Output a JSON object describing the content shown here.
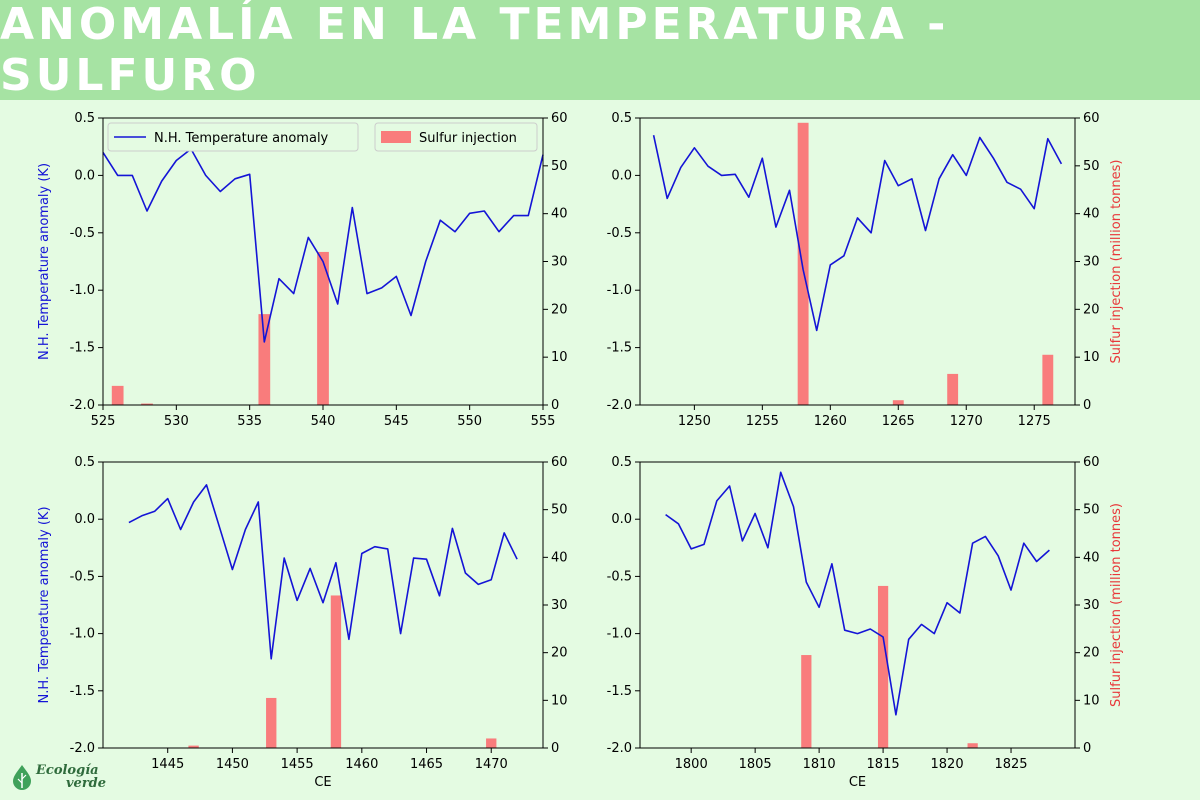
{
  "header": {
    "title": "ANOMALÍA EN LA TEMPERATURA - SULFURO"
  },
  "colors": {
    "line": "#1414d6",
    "bar": "#f97c7c",
    "header_bg": "#a6e3a3",
    "page_bg": "#e4fbe2"
  },
  "legend": {
    "line_label": "N.H. Temperature anomaly",
    "bar_label": "Sulfur injection"
  },
  "logo": {
    "line1": "Ecología",
    "line2": "verde",
    "icon": "leaf-drop-icon"
  },
  "chart_data": [
    {
      "type": "line+bar",
      "xlim": [
        525,
        555
      ],
      "xticks": [
        525,
        530,
        535,
        540,
        545,
        550,
        555
      ],
      "ylim": [
        -2.0,
        0.5
      ],
      "yticks": [
        "-2.0",
        "-1.5",
        "-1.0",
        "-0.5",
        "0.0",
        "0.5"
      ],
      "y2lim": [
        0,
        60
      ],
      "y2ticks": [
        "0",
        "10",
        "20",
        "30",
        "40",
        "50",
        "60"
      ],
      "ylabel": "N.H. Temperature anomaly (K)",
      "y2label": "",
      "xlabel": "",
      "show_legend": true,
      "series": [
        {
          "name": "N.H. Temperature anomaly",
          "x": [
            525,
            526,
            527,
            528,
            529,
            530,
            531,
            532,
            533,
            534,
            535,
            536,
            537,
            538,
            539,
            540,
            541,
            542,
            543,
            544,
            545,
            546,
            547,
            548,
            549,
            550,
            551,
            552,
            553,
            554,
            555
          ],
          "y": [
            0.2,
            0.0,
            0.0,
            -0.31,
            -0.05,
            0.13,
            0.23,
            0.0,
            -0.14,
            -0.03,
            0.01,
            -1.45,
            -0.9,
            -1.03,
            -0.54,
            -0.75,
            -1.12,
            -0.28,
            -1.03,
            -0.98,
            -0.88,
            -1.22,
            -0.75,
            -0.39,
            -0.49,
            -0.33,
            -0.31,
            -0.49,
            -0.35,
            -0.35,
            0.18
          ]
        },
        {
          "name": "Sulfur injection",
          "x": [
            526,
            528,
            536,
            540
          ],
          "values": [
            4,
            0.3,
            19,
            32
          ]
        }
      ]
    },
    {
      "type": "line+bar",
      "xlim": [
        1246,
        1278
      ],
      "xticks": [
        1250,
        1255,
        1260,
        1265,
        1270,
        1275
      ],
      "ylim": [
        -2.0,
        0.5
      ],
      "yticks": [
        "-2.0",
        "-1.5",
        "-1.0",
        "-0.5",
        "0.0",
        "0.5"
      ],
      "y2lim": [
        0,
        60
      ],
      "y2ticks": [
        "0",
        "10",
        "20",
        "30",
        "40",
        "50",
        "60"
      ],
      "ylabel": "",
      "y2label": "Sulfur injection (million tonnes)",
      "xlabel": "",
      "show_legend": false,
      "series": [
        {
          "name": "N.H. Temperature anomaly",
          "x": [
            1247,
            1248,
            1249,
            1250,
            1251,
            1252,
            1253,
            1254,
            1255,
            1256,
            1257,
            1258,
            1259,
            1260,
            1261,
            1262,
            1263,
            1264,
            1265,
            1266,
            1267,
            1268,
            1269,
            1270,
            1271,
            1272,
            1273,
            1274,
            1275,
            1276,
            1277
          ],
          "y": [
            0.35,
            -0.2,
            0.07,
            0.24,
            0.08,
            0.0,
            0.01,
            -0.19,
            0.15,
            -0.45,
            -0.13,
            -0.82,
            -1.35,
            -0.78,
            -0.7,
            -0.37,
            -0.5,
            0.13,
            -0.09,
            -0.03,
            -0.48,
            -0.03,
            0.18,
            0.0,
            0.33,
            0.15,
            -0.06,
            -0.12,
            -0.29,
            0.32,
            0.1
          ]
        },
        {
          "name": "Sulfur injection",
          "x": [
            1258,
            1265,
            1269,
            1276
          ],
          "values": [
            59,
            1,
            6.5,
            10.5
          ]
        }
      ]
    },
    {
      "type": "line+bar",
      "xlim": [
        1440,
        1474
      ],
      "xticks": [
        1445,
        1450,
        1455,
        1460,
        1465,
        1470
      ],
      "ylim": [
        -2.0,
        0.5
      ],
      "yticks": [
        "-2.0",
        "-1.5",
        "-1.0",
        "-0.5",
        "0.0",
        "0.5"
      ],
      "y2lim": [
        0,
        60
      ],
      "y2ticks": [
        "0",
        "10",
        "20",
        "30",
        "40",
        "50",
        "60"
      ],
      "ylabel": "N.H. Temperature anomaly (K)",
      "y2label": "",
      "xlabel": "CE",
      "show_legend": false,
      "series": [
        {
          "name": "N.H. Temperature anomaly",
          "x": [
            1442,
            1443,
            1444,
            1445,
            1446,
            1447,
            1448,
            1449,
            1450,
            1451,
            1452,
            1453,
            1454,
            1455,
            1456,
            1457,
            1458,
            1459,
            1460,
            1461,
            1462,
            1463,
            1464,
            1465,
            1466,
            1467,
            1468,
            1469,
            1470,
            1471,
            1472
          ],
          "y": [
            -0.03,
            0.03,
            0.07,
            0.18,
            -0.09,
            0.15,
            0.3,
            -0.07,
            -0.44,
            -0.09,
            0.15,
            -1.22,
            -0.34,
            -0.71,
            -0.43,
            -0.73,
            -0.38,
            -1.05,
            -0.3,
            -0.24,
            -0.26,
            -1.0,
            -0.34,
            -0.35,
            -0.67,
            -0.08,
            -0.47,
            -0.57,
            -0.53,
            -0.12,
            -0.35
          ]
        },
        {
          "name": "Sulfur injection",
          "x": [
            1447,
            1453,
            1458,
            1470
          ],
          "values": [
            0.5,
            10.5,
            32,
            2
          ]
        }
      ]
    },
    {
      "type": "line+bar",
      "xlim": [
        1796,
        1830
      ],
      "xticks": [
        1800,
        1805,
        1810,
        1815,
        1820,
        1825
      ],
      "ylim": [
        -2.0,
        0.5
      ],
      "yticks": [
        "-2.0",
        "-1.5",
        "-1.0",
        "-0.5",
        "0.0",
        "0.5"
      ],
      "y2lim": [
        0,
        60
      ],
      "y2ticks": [
        "0",
        "10",
        "20",
        "30",
        "40",
        "50",
        "60"
      ],
      "ylabel": "",
      "y2label": "Sulfur injection (million tonnes)",
      "xlabel": "CE",
      "show_legend": false,
      "series": [
        {
          "name": "N.H. Temperature anomaly",
          "x": [
            1798,
            1799,
            1800,
            1801,
            1802,
            1803,
            1804,
            1805,
            1806,
            1807,
            1808,
            1809,
            1810,
            1811,
            1812,
            1813,
            1814,
            1815,
            1816,
            1817,
            1818,
            1819,
            1820,
            1821,
            1822,
            1823,
            1824,
            1825,
            1826,
            1827,
            1828
          ],
          "y": [
            0.04,
            -0.04,
            -0.26,
            -0.22,
            0.16,
            0.29,
            -0.19,
            0.05,
            -0.25,
            0.41,
            0.11,
            -0.55,
            -0.77,
            -0.39,
            -0.97,
            -1.0,
            -0.96,
            -1.03,
            -1.71,
            -1.05,
            -0.92,
            -1.0,
            -0.73,
            -0.82,
            -0.21,
            -0.15,
            -0.32,
            -0.62,
            -0.21,
            -0.37,
            -0.27
          ]
        },
        {
          "name": "Sulfur injection",
          "x": [
            1809,
            1815,
            1822
          ],
          "values": [
            19.5,
            34,
            1
          ]
        }
      ]
    }
  ]
}
